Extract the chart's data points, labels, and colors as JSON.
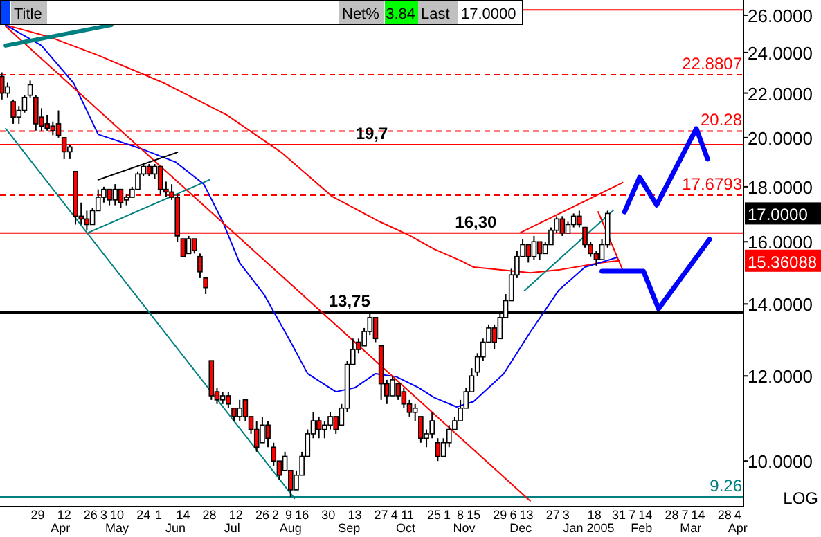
{
  "chart_data": {
    "type": "candlestick",
    "x": [
      "2004-03-10",
      "2004-03-13",
      "2004-03-16",
      "2004-03-19",
      "2004-03-22",
      "2004-03-25",
      "2004-03-28",
      "2004-03-31",
      "2004-04-03",
      "2004-04-06",
      "2004-04-09",
      "2004-04-12",
      "2004-04-15",
      "2004-04-18",
      "2004-04-21",
      "2004-04-24",
      "2004-04-27",
      "2004-04-30",
      "2004-05-03",
      "2004-05-06",
      "2004-05-09",
      "2004-05-12",
      "2004-05-15",
      "2004-05-18",
      "2004-05-21",
      "2004-05-24",
      "2004-05-27",
      "2004-05-30",
      "2004-06-02",
      "2004-06-05",
      "2004-06-08",
      "2004-06-11",
      "2004-06-14",
      "2004-06-17",
      "2004-06-20",
      "2004-06-23",
      "2004-06-26",
      "2004-06-29",
      "2004-07-02",
      "2004-07-05",
      "2004-07-08",
      "2004-07-11",
      "2004-07-14",
      "2004-07-17",
      "2004-07-20",
      "2004-07-23",
      "2004-07-26",
      "2004-07-29",
      "2004-08-01",
      "2004-08-04",
      "2004-08-07",
      "2004-08-10",
      "2004-08-13",
      "2004-08-16",
      "2004-08-19",
      "2004-08-22",
      "2004-08-25",
      "2004-08-28",
      "2004-08-31",
      "2004-09-03",
      "2004-09-06",
      "2004-09-09",
      "2004-09-12",
      "2004-09-15",
      "2004-09-18",
      "2004-09-21",
      "2004-09-24",
      "2004-09-27",
      "2004-09-30",
      "2004-10-03",
      "2004-10-06",
      "2004-10-09",
      "2004-10-12",
      "2004-10-15",
      "2004-10-18",
      "2004-10-21",
      "2004-10-24",
      "2004-10-27",
      "2004-10-30",
      "2004-11-02",
      "2004-11-05",
      "2004-11-08",
      "2004-11-11",
      "2004-11-14",
      "2004-11-17",
      "2004-11-20",
      "2004-11-23",
      "2004-11-26",
      "2004-11-29",
      "2004-12-02",
      "2004-12-05",
      "2004-12-08",
      "2004-12-11",
      "2004-12-14",
      "2004-12-17",
      "2004-12-20",
      "2004-12-23",
      "2004-12-26",
      "2004-12-29",
      "2005-01-01",
      "2005-01-04",
      "2005-01-07",
      "2005-01-10",
      "2005-01-13",
      "2005-01-16",
      "2005-01-19",
      "2005-01-22",
      "2005-01-25"
    ],
    "ohlc": [
      [
        22.8,
        23.0,
        21.7,
        22.0
      ],
      [
        22.0,
        22.5,
        21.8,
        22.3
      ],
      [
        21.6,
        21.7,
        20.6,
        20.9
      ],
      [
        20.9,
        21.4,
        20.6,
        21.2
      ],
      [
        21.2,
        21.9,
        21.1,
        21.8
      ],
      [
        21.9,
        22.6,
        21.8,
        22.4
      ],
      [
        21.8,
        21.9,
        20.3,
        20.6
      ],
      [
        20.9,
        21.3,
        20.3,
        20.5
      ],
      [
        20.6,
        21.0,
        20.3,
        20.4
      ],
      [
        20.5,
        20.7,
        20.1,
        20.3
      ],
      [
        20.6,
        21.2,
        20.0,
        20.1
      ],
      [
        20.0,
        20.0,
        19.1,
        19.4
      ],
      [
        19.4,
        19.7,
        19.1,
        19.6
      ],
      [
        18.6,
        18.6,
        16.6,
        16.9
      ],
      [
        16.9,
        17.4,
        16.6,
        16.8
      ],
      [
        16.8,
        17.1,
        16.4,
        16.6
      ],
      [
        16.6,
        17.2,
        16.6,
        17.1
      ],
      [
        17.1,
        17.9,
        17.1,
        17.6
      ],
      [
        17.6,
        18.0,
        17.4,
        17.9
      ],
      [
        17.9,
        17.9,
        17.3,
        17.5
      ],
      [
        17.5,
        18.1,
        17.3,
        17.9
      ],
      [
        17.9,
        17.9,
        17.2,
        17.4
      ],
      [
        17.5,
        17.7,
        17.3,
        17.6
      ],
      [
        17.6,
        18.0,
        17.6,
        17.9
      ],
      [
        17.9,
        18.6,
        17.9,
        18.5
      ],
      [
        18.5,
        18.9,
        18.4,
        18.8
      ],
      [
        18.8,
        18.9,
        18.4,
        18.5
      ],
      [
        18.5,
        18.9,
        18.3,
        18.8
      ],
      [
        18.8,
        18.8,
        17.7,
        17.9
      ],
      [
        17.9,
        18.2,
        17.6,
        17.8
      ],
      [
        17.8,
        18.1,
        17.5,
        17.6
      ],
      [
        17.6,
        17.7,
        16.0,
        16.2
      ],
      [
        16.1,
        16.1,
        15.5,
        15.5
      ],
      [
        15.6,
        16.2,
        15.6,
        16.1
      ],
      [
        16.1,
        16.1,
        15.6,
        15.7
      ],
      [
        15.5,
        15.6,
        14.8,
        15.0
      ],
      [
        14.8,
        14.8,
        14.3,
        14.5
      ],
      [
        12.4,
        12.4,
        11.4,
        11.5
      ],
      [
        11.6,
        11.7,
        11.3,
        11.4
      ],
      [
        11.4,
        11.6,
        11.3,
        11.5
      ],
      [
        11.5,
        11.6,
        11.2,
        11.3
      ],
      [
        11.2,
        11.2,
        10.9,
        11.0
      ],
      [
        11.0,
        11.4,
        10.9,
        11.2
      ],
      [
        11.4,
        11.4,
        10.9,
        11.0
      ],
      [
        11.0,
        11.0,
        10.6,
        10.7
      ],
      [
        10.7,
        10.9,
        10.2,
        10.3
      ],
      [
        10.4,
        11.0,
        10.4,
        10.8
      ],
      [
        10.8,
        10.9,
        10.3,
        10.5
      ],
      [
        10.3,
        10.4,
        9.9,
        10.0
      ],
      [
        10.0,
        10.0,
        9.6,
        9.7
      ],
      [
        9.8,
        10.2,
        9.8,
        10.1
      ],
      [
        9.8,
        9.8,
        9.26,
        9.4
      ],
      [
        9.4,
        9.8,
        9.4,
        9.7
      ],
      [
        9.7,
        10.2,
        9.7,
        10.1
      ],
      [
        10.1,
        10.7,
        10.1,
        10.6
      ],
      [
        10.6,
        11.1,
        10.5,
        10.9
      ],
      [
        10.9,
        11.0,
        10.5,
        10.7
      ],
      [
        10.7,
        10.9,
        10.5,
        10.8
      ],
      [
        10.8,
        11.1,
        10.7,
        11.0
      ],
      [
        11.0,
        11.0,
        10.6,
        10.7
      ],
      [
        10.8,
        11.3,
        10.8,
        11.2
      ],
      [
        11.2,
        12.4,
        11.1,
        12.3
      ],
      [
        12.3,
        13.0,
        12.3,
        12.7
      ],
      [
        12.9,
        13.0,
        12.6,
        12.7
      ],
      [
        12.8,
        13.3,
        12.8,
        13.2
      ],
      [
        13.2,
        13.75,
        13.1,
        13.6
      ],
      [
        13.6,
        13.6,
        12.9,
        13.0
      ],
      [
        12.8,
        12.8,
        11.4,
        11.8
      ],
      [
        11.8,
        11.9,
        11.3,
        11.5
      ],
      [
        11.5,
        12.0,
        11.5,
        11.9
      ],
      [
        11.8,
        11.8,
        11.4,
        11.5
      ],
      [
        11.6,
        11.7,
        11.2,
        11.3
      ],
      [
        11.3,
        11.4,
        11.0,
        11.1
      ],
      [
        11.1,
        11.3,
        10.9,
        11.2
      ],
      [
        11.0,
        11.0,
        10.4,
        10.5
      ],
      [
        10.5,
        10.7,
        10.3,
        10.6
      ],
      [
        10.6,
        11.1,
        10.5,
        10.9
      ],
      [
        10.4,
        10.5,
        10.0,
        10.1
      ],
      [
        10.1,
        10.5,
        10.1,
        10.4
      ],
      [
        10.4,
        10.8,
        10.3,
        10.7
      ],
      [
        10.7,
        11.0,
        10.7,
        10.9
      ],
      [
        10.9,
        11.4,
        10.9,
        11.2
      ],
      [
        11.2,
        11.7,
        11.2,
        11.6
      ],
      [
        11.6,
        12.2,
        11.6,
        12.0
      ],
      [
        12.1,
        12.6,
        12.0,
        12.5
      ],
      [
        12.5,
        13.0,
        12.4,
        12.9
      ],
      [
        12.9,
        13.4,
        12.9,
        13.3
      ],
      [
        13.3,
        13.4,
        12.7,
        12.9
      ],
      [
        13.0,
        13.8,
        13.0,
        13.6
      ],
      [
        13.6,
        14.3,
        13.6,
        14.1
      ],
      [
        14.1,
        15.1,
        14.1,
        14.9
      ],
      [
        14.9,
        15.7,
        14.8,
        15.5
      ],
      [
        15.5,
        16.1,
        15.5,
        15.9
      ],
      [
        15.9,
        15.9,
        15.3,
        15.5
      ],
      [
        15.5,
        16.2,
        15.4,
        16.0
      ],
      [
        16.0,
        16.0,
        15.4,
        15.6
      ],
      [
        15.6,
        16.0,
        15.6,
        15.9
      ],
      [
        15.9,
        16.5,
        15.9,
        16.4
      ],
      [
        16.4,
        16.9,
        16.3,
        16.8
      ],
      [
        16.8,
        16.9,
        16.2,
        16.3
      ],
      [
        16.3,
        16.7,
        16.3,
        16.6
      ],
      [
        16.6,
        17.0,
        16.5,
        16.9
      ],
      [
        16.9,
        17.1,
        16.5,
        16.6
      ],
      [
        16.5,
        16.5,
        15.8,
        15.9
      ],
      [
        15.9,
        16.0,
        15.5,
        15.6
      ],
      [
        15.6,
        15.7,
        15.2,
        15.4
      ],
      [
        15.4,
        16.1,
        15.4,
        15.9
      ],
      [
        15.9,
        17.1,
        15.8,
        17.0
      ]
    ],
    "series": [
      {
        "type": "line",
        "color": "#ff0000",
        "x": [
          "2004-03-12",
          "2004-04-05",
          "2004-04-30",
          "2004-06-04",
          "2004-07-07",
          "2004-08-05",
          "2004-09-01",
          "2004-09-26",
          "2004-10-12",
          "2004-10-25",
          "2004-11-08",
          "2004-11-15",
          "2004-12-15",
          "2004-12-30",
          "2005-01-22",
          "2005-01-31"
        ],
        "values": [
          25.46,
          24.79,
          23.86,
          22.48,
          21.0,
          19.38,
          17.63,
          16.71,
          16.22,
          15.75,
          15.37,
          15.15,
          14.97,
          15.06,
          15.3,
          15.36088
        ]
      },
      {
        "type": "line",
        "color": "#0000ff",
        "x": [
          "2004-03-12",
          "2004-03-31",
          "2004-04-17",
          "2004-04-30",
          "2004-05-22",
          "2004-06-10",
          "2004-06-25",
          "2004-07-05",
          "2004-07-14",
          "2004-07-27",
          "2004-08-10",
          "2004-08-19",
          "2004-09-03",
          "2004-09-13",
          "2004-09-24",
          "2004-10-05",
          "2004-10-17",
          "2004-10-25",
          "2004-11-06",
          "2004-11-15",
          "2004-12-01",
          "2004-12-15",
          "2004-12-30",
          "2005-01-13",
          "2005-01-30"
        ],
        "values": [
          25.46,
          24.36,
          22.48,
          20.14,
          19.55,
          18.98,
          18.1,
          16.71,
          15.29,
          14.28,
          12.91,
          12.06,
          11.6,
          11.7,
          12.06,
          11.98,
          11.7,
          11.46,
          11.23,
          11.36,
          12.06,
          13.18,
          14.41,
          15.15,
          15.47
        ]
      },
      {
        "type": "line",
        "color": "#ff0000",
        "x": [
          "2004-03-12",
          "2004-12-15"
        ],
        "values": [
          25.39,
          9.18
        ]
      },
      {
        "type": "line",
        "color": "#008080",
        "x": [
          "2004-03-12",
          "2004-08-12"
        ],
        "values": [
          20.39,
          9.23
        ]
      },
      {
        "type": "line",
        "color": "#008080",
        "x": [
          "2004-03-12",
          "2004-05-07"
        ],
        "values": [
          24.36,
          25.46
        ]
      },
      {
        "type": "line",
        "color": "#008080",
        "x": [
          "2004-04-25",
          "2004-06-28"
        ],
        "values": [
          16.32,
          18.27
        ]
      },
      {
        "type": "line",
        "color": "#000000",
        "x": [
          "2004-04-30",
          "2004-06-11"
        ],
        "values": [
          18.27,
          19.38
        ]
      },
      {
        "type": "line",
        "color": "#ff0000",
        "x": [
          "2004-12-10",
          "2005-02-02"
        ],
        "values": [
          16.32,
          18.16
        ]
      },
      {
        "type": "line",
        "color": "#008080",
        "x": [
          "2004-12-12",
          "2005-01-28"
        ],
        "values": [
          14.41,
          17.11
        ]
      },
      {
        "type": "line",
        "color": "#ff0000",
        "x": [
          "2005-01-20",
          "2005-02-02"
        ],
        "values": [
          17.06,
          15.06
        ]
      },
      {
        "type": "line",
        "color": "#0000ff",
        "x": [
          "2005-02-03",
          "2005-02-11",
          "2005-02-20",
          "2005-03-13",
          "2005-03-19"
        ],
        "values": [
          17.06,
          18.37,
          17.31,
          20.39,
          19.1
        ]
      },
      {
        "type": "line",
        "color": "#0000ff",
        "x": [
          "2005-01-22",
          "2005-02-13",
          "2005-02-21",
          "2005-03-20"
        ],
        "values": [
          15.02,
          15.02,
          13.86,
          16.08
        ]
      }
    ],
    "ref_lines": [
      {
        "axis": "y",
        "value": 26.3,
        "color": "#ff0000",
        "line_style": "solid"
      },
      {
        "axis": "y",
        "value": 22.8807,
        "label": "22.8807",
        "color": "#ff0000",
        "line_style": "dashed"
      },
      {
        "axis": "y",
        "value": 20.28,
        "label": "20.28",
        "color": "#ff0000",
        "line_style": "dashed"
      },
      {
        "axis": "y",
        "value": 19.7,
        "label": "19,7",
        "color": "#ff0000",
        "line_style": "solid"
      },
      {
        "axis": "y",
        "value": 17.6793,
        "label": "17.6793",
        "color": "#ff0000",
        "line_style": "dashed"
      },
      {
        "axis": "y",
        "value": 16.3,
        "label": "16,30",
        "color": "#ff0000",
        "line_style": "solid"
      },
      {
        "axis": "y",
        "value": 13.75,
        "label": "13,75",
        "color": "#000000",
        "line_style": "solid"
      },
      {
        "axis": "y",
        "value": 9.26,
        "label": "9.26",
        "color": "#008080",
        "line_style": "solid"
      }
    ],
    "annotations": [
      "Title",
      "Net%",
      "3.84",
      "Last",
      "17.0000",
      "LOG",
      "17.0000",
      "15.36088"
    ],
    "log": true,
    "xlim": [
      "2004-03-09",
      "2005-04-07"
    ],
    "xticks": [
      {
        "value": "2004-03-29",
        "label": "29"
      },
      {
        "value": "2004-04-12",
        "label": "12"
      },
      {
        "value": "2004-04-26",
        "label": "26"
      },
      {
        "value": "2004-05-03",
        "label": "3"
      },
      {
        "value": "2004-05-10",
        "label": "10"
      },
      {
        "value": "2004-05-24",
        "label": "24"
      },
      {
        "value": "2004-06-01",
        "label": "1"
      },
      {
        "value": "2004-06-14",
        "label": "14"
      },
      {
        "value": "2004-06-28",
        "label": "28"
      },
      {
        "value": "2004-07-12",
        "label": "12"
      },
      {
        "value": "2004-07-26",
        "label": "26"
      },
      {
        "value": "2004-08-02",
        "label": "2"
      },
      {
        "value": "2004-08-09",
        "label": "9"
      },
      {
        "value": "2004-08-16",
        "label": "16"
      },
      {
        "value": "2004-08-30",
        "label": "30"
      },
      {
        "value": "2004-09-13",
        "label": "13"
      },
      {
        "value": "2004-09-27",
        "label": "27"
      },
      {
        "value": "2004-10-04",
        "label": "4"
      },
      {
        "value": "2004-10-11",
        "label": "11"
      },
      {
        "value": "2004-10-25",
        "label": "25"
      },
      {
        "value": "2004-11-01",
        "label": "1"
      },
      {
        "value": "2004-11-08",
        "label": "8"
      },
      {
        "value": "2004-11-15",
        "label": "15"
      },
      {
        "value": "2004-11-29",
        "label": "29"
      },
      {
        "value": "2004-12-06",
        "label": "6"
      },
      {
        "value": "2004-12-13",
        "label": "13"
      },
      {
        "value": "2004-12-27",
        "label": "27"
      },
      {
        "value": "2005-01-03",
        "label": "3"
      },
      {
        "value": "2005-01-18",
        "label": "18"
      },
      {
        "value": "2005-01-31",
        "label": "31"
      },
      {
        "value": "2005-02-07",
        "label": "7"
      },
      {
        "value": "2005-02-14",
        "label": "14"
      },
      {
        "value": "2005-02-28",
        "label": "28"
      },
      {
        "value": "2005-03-07",
        "label": "7"
      },
      {
        "value": "2005-03-14",
        "label": "14"
      },
      {
        "value": "2005-03-28",
        "label": "28"
      },
      {
        "value": "2005-04-04",
        "label": "4"
      }
    ],
    "x2lim": [
      "2004-03-09",
      "2005-04-07"
    ],
    "x2ticks": [
      {
        "value": "2004-04-10",
        "label": "Apr"
      },
      {
        "value": "2004-05-10",
        "label": "May"
      },
      {
        "value": "2004-06-10",
        "label": "Jun"
      },
      {
        "value": "2004-07-10",
        "label": "Jul"
      },
      {
        "value": "2004-08-10",
        "label": "Aug"
      },
      {
        "value": "2004-09-10",
        "label": "Sep"
      },
      {
        "value": "2004-10-10",
        "label": "Oct"
      },
      {
        "value": "2004-11-10",
        "label": "Nov"
      },
      {
        "value": "2004-12-10",
        "label": "Dec"
      },
      {
        "value": "2005-01-15",
        "label": "Jan 2005"
      },
      {
        "value": "2005-02-12",
        "label": "Feb"
      },
      {
        "value": "2005-03-10",
        "label": "Mar"
      },
      {
        "value": "2005-04-04",
        "label": "Apr"
      }
    ],
    "ylim": [
      9.07,
      26.86
    ],
    "yticks": [
      {
        "value": 10,
        "label": "10.0000"
      },
      {
        "value": 12,
        "label": "12.0000"
      },
      {
        "value": 14,
        "label": "14.0000"
      },
      {
        "value": 16,
        "label": "16.0000"
      },
      {
        "value": 18,
        "label": "18.0000"
      },
      {
        "value": 20,
        "label": "20.0000"
      },
      {
        "value": 22,
        "label": "22.0000"
      },
      {
        "value": 24,
        "label": "24.0000"
      },
      {
        "value": 26,
        "label": "26.0000"
      }
    ],
    "grid": false
  }
}
